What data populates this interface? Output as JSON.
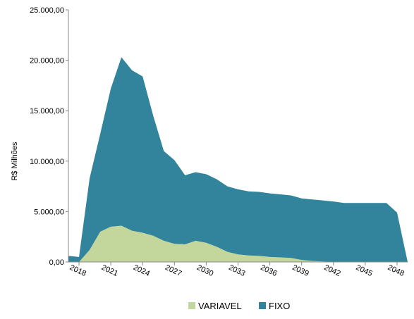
{
  "chart_data": {
    "type": "stacked_area",
    "y_label": "R$ Milhões",
    "categories": [
      null,
      "2018",
      null,
      null,
      "2021",
      null,
      null,
      "2024",
      null,
      null,
      "2027",
      null,
      null,
      "2030",
      null,
      null,
      "2033",
      null,
      null,
      "2036",
      null,
      null,
      "2039",
      null,
      null,
      "2042",
      null,
      null,
      "2045",
      null,
      null,
      "2048",
      null
    ],
    "series": [
      {
        "name": "VARIAVEL",
        "color": "#c3d69b",
        "values": [
          0,
          0,
          1200,
          3000,
          3500,
          3600,
          3100,
          2900,
          2600,
          2100,
          1800,
          1750,
          2100,
          1900,
          1500,
          1000,
          750,
          650,
          600,
          500,
          450,
          400,
          200,
          100,
          50,
          0,
          0,
          0,
          0,
          0,
          0,
          0,
          0
        ]
      },
      {
        "name": "FIXO",
        "color": "#31849b",
        "values": [
          600,
          500,
          7100,
          9700,
          13700,
          16700,
          15900,
          15500,
          11900,
          8900,
          8300,
          6850,
          6800,
          6800,
          6700,
          6500,
          6450,
          6350,
          6350,
          6300,
          6250,
          6200,
          6100,
          6100,
          6050,
          6000,
          5850,
          5850,
          5850,
          5850,
          5850,
          4900,
          0
        ]
      }
    ],
    "ylim": [
      0,
      25000
    ],
    "yticks": [
      {
        "value": 0,
        "label": "0,00"
      },
      {
        "value": 5000,
        "label": "5.000,00"
      },
      {
        "value": 10000,
        "label": "10.000,00"
      },
      {
        "value": 15000,
        "label": "15.000,00"
      },
      {
        "value": 20000,
        "label": "20.000,00"
      },
      {
        "value": 25000,
        "label": "25.000,00"
      }
    ],
    "grid": false
  }
}
